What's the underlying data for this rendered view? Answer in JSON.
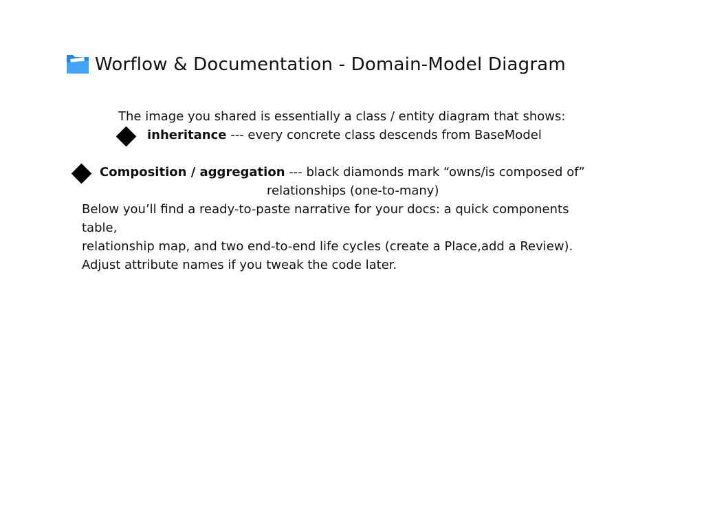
{
  "title": {
    "icon": "folder-icon",
    "text": "Worflow & Documentation - Domain-Model Diagram"
  },
  "intro": "The image you shared is essentially a class / entity diagram that shows:",
  "bullets": [
    {
      "icon": "diamond-bullet-icon",
      "term": "inheritance",
      "text": " --- every concrete class descends from BaseModel"
    },
    {
      "icon": "diamond-bullet-icon",
      "term": "Composition / aggregation",
      "text": " --- black diamonds mark “owns/is composed of”",
      "continuation": "relationships (one-to-many)"
    }
  ],
  "paragraph": {
    "line1": "Below you’ll find a ready-to-paste narrative for your docs: a quick components",
    "line2": "table,",
    "line3": "relationship map, and two end-to-end life cycles (create a Place,add a Review).",
    "line4": "Adjust attribute names if you tweak the code later."
  }
}
